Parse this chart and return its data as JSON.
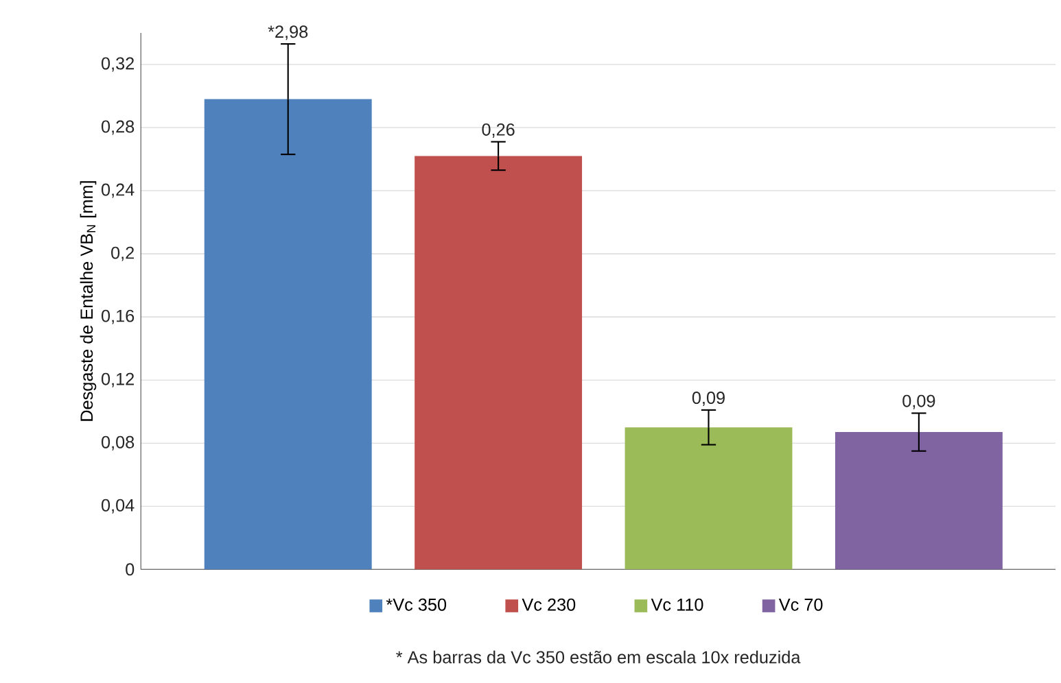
{
  "chart_data": {
    "type": "bar",
    "ylabel": "Desgaste de Entalhe VB$_{N}$ [mm]",
    "categories": [
      null,
      null,
      null,
      null
    ],
    "series": [
      {
        "name": "*Vc 350",
        "color": "#4f81bd",
        "values": [
          0.298,
          null,
          null,
          null
        ],
        "errors": [
          0.035,
          null,
          null,
          null
        ],
        "value_labels": [
          null,
          null,
          null,
          null
        ]
      },
      {
        "name": "Vc 230",
        "color": "#c0504d",
        "values": [
          null,
          0.262,
          null,
          null
        ],
        "errors": [
          null,
          0.009,
          null,
          null
        ],
        "value_labels": [
          null,
          "0,26",
          null,
          null
        ]
      },
      {
        "name": "Vc 110",
        "color": "#9bbb59",
        "values": [
          null,
          null,
          0.09,
          null
        ],
        "errors": [
          null,
          null,
          0.011,
          null
        ],
        "value_labels": [
          null,
          null,
          "0,09",
          null
        ]
      },
      {
        "name": "Vc 70",
        "color": "#8064a2",
        "values": [
          null,
          null,
          null,
          0.087
        ],
        "errors": [
          null,
          null,
          null,
          0.012
        ],
        "value_labels": [
          null,
          null,
          null,
          "0,09"
        ]
      }
    ],
    "ylim": [
      0,
      0.34
    ],
    "yticks": [
      0,
      {
        "value": 0.04,
        "label": "0,04"
      },
      {
        "value": 0.08,
        "label": "0,08"
      },
      {
        "value": 0.12,
        "label": "0,12"
      },
      {
        "value": 0.16,
        "label": "0,16"
      },
      {
        "value": 0.2,
        "label": "0,2"
      },
      {
        "value": 0.24,
        "label": "0,24"
      },
      {
        "value": 0.28,
        "label": "0,28"
      },
      {
        "value": 0.32,
        "label": "0,32"
      }
    ],
    "grid": "y",
    "legend": "bottom",
    "annotations": [
      {
        "text": "*2,98",
        "y": 0.333
      },
      "* As barras da Vc 350 estão em escala 10x reduzida"
    ]
  }
}
